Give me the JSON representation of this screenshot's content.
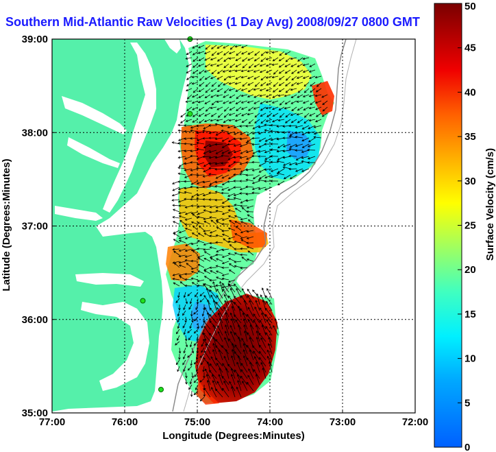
{
  "title": "Southern Mid-Atlantic Raw Velocities (1 Day Avg) 2008/09/27 0800 GMT",
  "map": {
    "xlabel": "Longitude (Degrees:Minutes)",
    "ylabel": "Latitude (Degrees:Minutes)",
    "lon_range": [
      -77,
      -72
    ],
    "lat_range": [
      35,
      39
    ],
    "x_ticks": [
      {
        "value": -77,
        "label": "77:00"
      },
      {
        "value": -76,
        "label": "76:00"
      },
      {
        "value": -75,
        "label": "75:00"
      },
      {
        "value": -74,
        "label": "74:00"
      },
      {
        "value": -73,
        "label": "73:00"
      },
      {
        "value": -72,
        "label": "72:00"
      }
    ],
    "y_ticks": [
      {
        "value": 35,
        "label": "35:00"
      },
      {
        "value": 36,
        "label": "36:00"
      },
      {
        "value": 37,
        "label": "37:00"
      },
      {
        "value": 38,
        "label": "38:00"
      },
      {
        "value": 39,
        "label": "39:00"
      }
    ],
    "land_color": "#55f0aa",
    "water_color": "#ffffff",
    "grid": true,
    "radar_sites": [
      {
        "lon": -75.1,
        "lat": 39.0
      },
      {
        "lon": -75.1,
        "lat": 38.2
      },
      {
        "lon": -75.75,
        "lat": 36.2
      },
      {
        "lon": -75.5,
        "lat": 35.25
      }
    ]
  },
  "colorbar": {
    "label": "Surface Velocity (cm/s)",
    "min": 0,
    "max": 50,
    "ticks": [
      {
        "value": 0,
        "label": "0"
      },
      {
        "value": 5,
        "label": "5"
      },
      {
        "value": 10,
        "label": "10"
      },
      {
        "value": 15,
        "label": "15"
      },
      {
        "value": 20,
        "label": "20"
      },
      {
        "value": 25,
        "label": "25"
      },
      {
        "value": 30,
        "label": "30"
      },
      {
        "value": 35,
        "label": "35"
      },
      {
        "value": 40,
        "label": "40"
      },
      {
        "value": 45,
        "label": "45"
      },
      {
        "value": 50,
        "label": "50"
      }
    ]
  }
}
